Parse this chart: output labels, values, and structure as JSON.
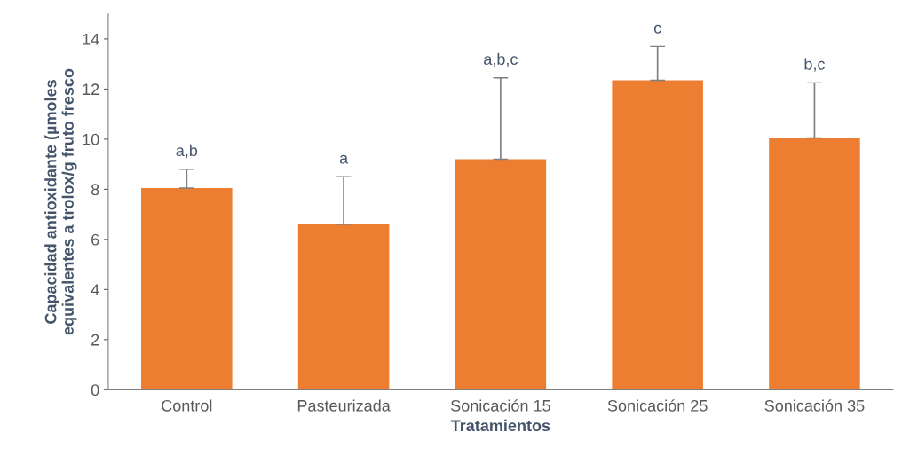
{
  "chart_data": {
    "type": "bar",
    "xlabel": "Tratamientos",
    "ylabel": "Capacidad antioxidante (µmoles\nequivalentes a trolox/g fruto fresco",
    "categories": [
      "Control",
      "Pasteurizada",
      "Sonicación 15",
      "Sonicación 25",
      "Sonicación 35"
    ],
    "values": [
      8.05,
      6.6,
      9.2,
      12.35,
      10.05
    ],
    "errors": [
      [
        8.05,
        8.8
      ],
      [
        6.6,
        8.5
      ],
      [
        9.2,
        12.45
      ],
      [
        12.35,
        13.7
      ],
      [
        10.05,
        12.25
      ]
    ],
    "color": "#ed7d31",
    "ylim": [
      0,
      15
    ],
    "yticks": [
      0,
      2,
      4,
      6,
      8,
      10,
      12,
      14
    ],
    "grid": false,
    "annotations": [
      {
        "text": "a,b",
        "x": "Control",
        "y": 8.8
      },
      {
        "text": "a",
        "x": "Pasteurizada",
        "y": 8.5
      },
      {
        "text": "a,b,c",
        "x": "Sonicación 15",
        "y": 12.45
      },
      {
        "text": "c",
        "x": "Sonicación 25",
        "y": 13.7
      },
      {
        "text": "b,c",
        "x": "Sonicación 35",
        "y": 12.25
      }
    ]
  }
}
